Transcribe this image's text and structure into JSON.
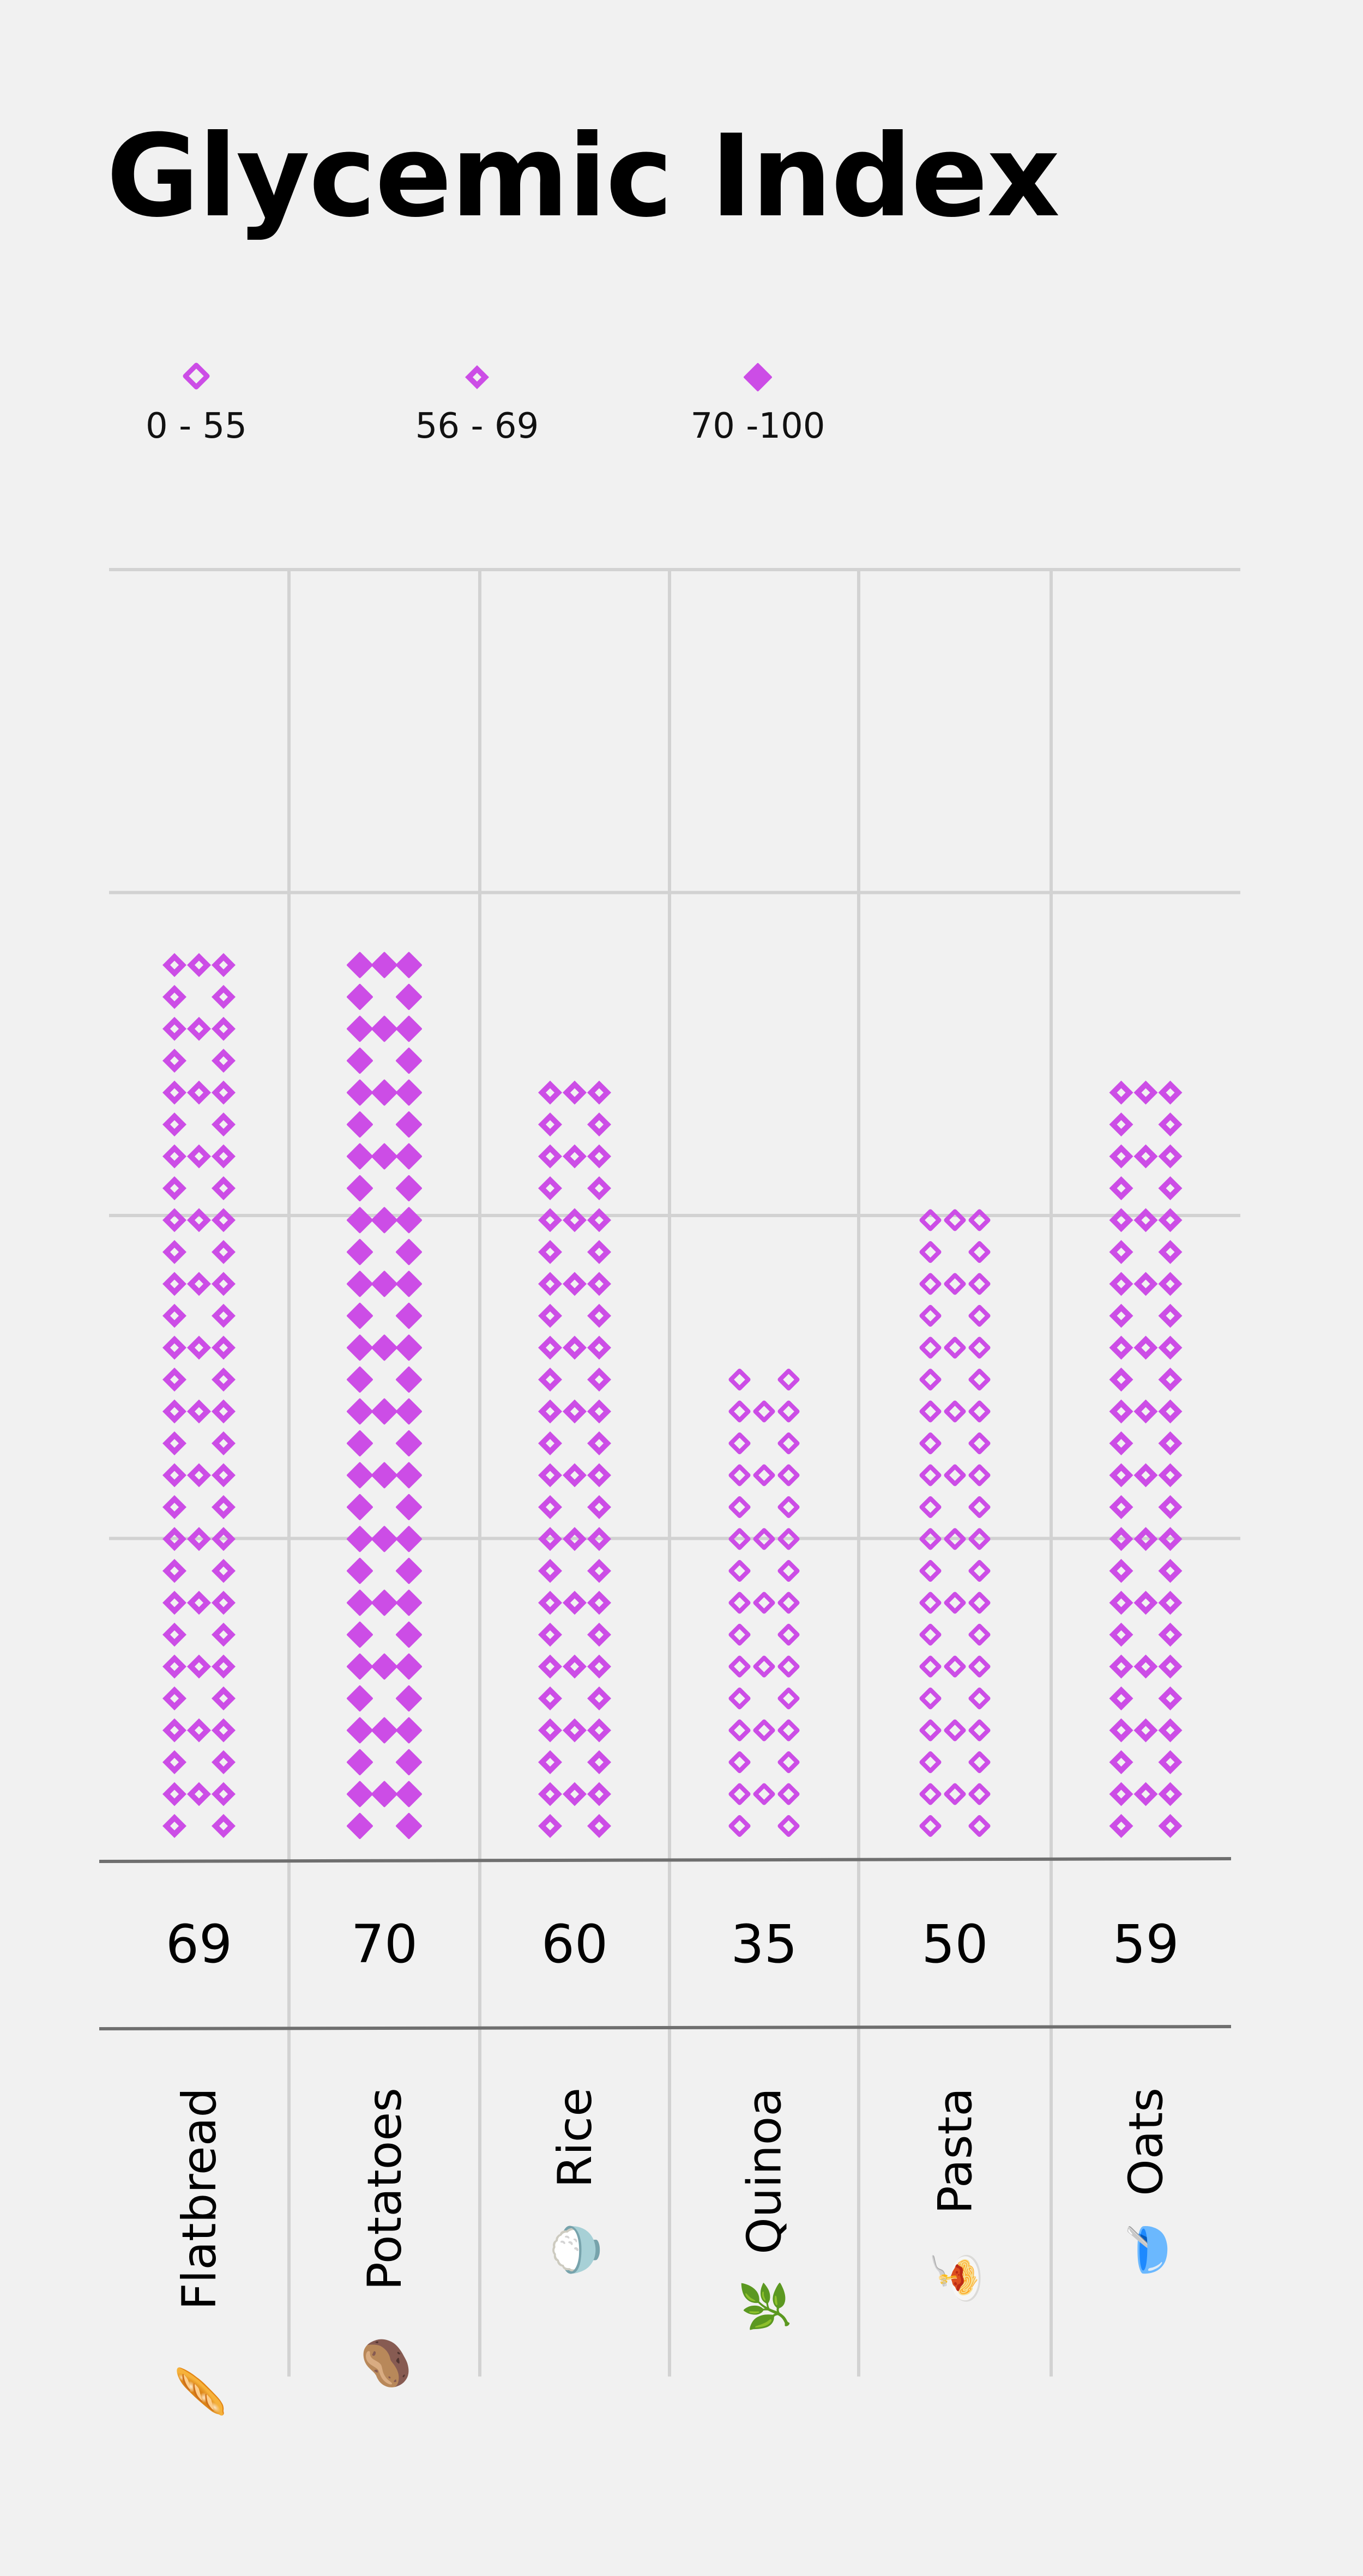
{
  "title": "Glycemic Index",
  "legend": [
    {
      "label": "0 - 55",
      "style": "outline-diamond"
    },
    {
      "label": "56 - 69",
      "style": "diamond-with-hole"
    },
    {
      "label": "70 -100",
      "style": "solid-diamond"
    }
  ],
  "colors": {
    "accent": "#cc4de6",
    "background": "#f1f1f1",
    "grid": "#d2d2d2",
    "axis": "#6f6f6f",
    "text": "#000000"
  },
  "chart_data": {
    "type": "bar",
    "title": "Glycemic Index",
    "categories": [
      "Flatbread",
      "Potatoes",
      "Rice",
      "Quinoa",
      "Pasta",
      "Oats"
    ],
    "category_emojis": [
      "🥖",
      "🥔",
      "🍚",
      "🌿",
      "🍝",
      "🥣"
    ],
    "values": [
      69,
      70,
      60,
      35,
      50,
      59
    ],
    "ylim": [
      0,
      100
    ],
    "legend_position": "top-left",
    "grid": true
  }
}
